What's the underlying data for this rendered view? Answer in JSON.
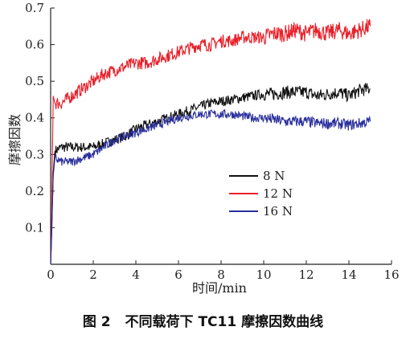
{
  "caption": {
    "label": "图 2",
    "text": "不同载荷下 TC11 摩擦因数曲线"
  },
  "chart_data": {
    "type": "line",
    "xlabel": "时间/min",
    "ylabel": "摩擦因数",
    "xlim": [
      0,
      16
    ],
    "ylim": [
      0,
      0.7
    ],
    "xticks": [
      0,
      2,
      4,
      6,
      8,
      10,
      12,
      14,
      16
    ],
    "xtick_labels": [
      "0",
      "2",
      "4",
      "6",
      "8",
      "10",
      "12",
      "14",
      "16"
    ],
    "yticks": [
      0.1,
      0.2,
      0.3,
      0.4,
      0.5,
      0.6,
      0.7
    ],
    "ytick_labels": [
      "0.1",
      "0.2",
      "0.3",
      "0.4",
      "0.5",
      "0.6",
      "0.7"
    ],
    "grid": false,
    "legend_position": "center-right",
    "series": [
      {
        "name": "8 N",
        "color": "#111111",
        "x": [
          0,
          0.05,
          0.12,
          0.2,
          0.5,
          1,
          1.5,
          2,
          2.5,
          3,
          3.5,
          4,
          4.5,
          5,
          5.5,
          6,
          6.5,
          7,
          7.5,
          8,
          8.5,
          9,
          9.5,
          10,
          10.5,
          11,
          11.5,
          12,
          12.5,
          13,
          13.5,
          14,
          14.5,
          15
        ],
        "y": [
          0,
          0.08,
          0.25,
          0.31,
          0.32,
          0.32,
          0.32,
          0.32,
          0.33,
          0.34,
          0.35,
          0.37,
          0.38,
          0.39,
          0.4,
          0.41,
          0.42,
          0.43,
          0.44,
          0.445,
          0.45,
          0.455,
          0.46,
          0.465,
          0.465,
          0.47,
          0.47,
          0.47,
          0.46,
          0.465,
          0.47,
          0.46,
          0.475,
          0.48
        ]
      },
      {
        "name": "12 N",
        "color": "#e8202a",
        "x": [
          0,
          0.05,
          0.12,
          0.2,
          0.5,
          1,
          1.5,
          2,
          2.5,
          3,
          3.5,
          4,
          4.5,
          5,
          5.5,
          6,
          6.5,
          7,
          7.5,
          8,
          8.5,
          9,
          9.5,
          10,
          10.5,
          11,
          11.5,
          12,
          12.5,
          13,
          13.5,
          14,
          14.5,
          15
        ],
        "y": [
          0,
          0.15,
          0.46,
          0.44,
          0.44,
          0.46,
          0.48,
          0.5,
          0.52,
          0.53,
          0.54,
          0.55,
          0.55,
          0.56,
          0.57,
          0.58,
          0.59,
          0.6,
          0.6,
          0.61,
          0.61,
          0.62,
          0.62,
          0.62,
          0.63,
          0.63,
          0.64,
          0.63,
          0.64,
          0.63,
          0.64,
          0.63,
          0.64,
          0.65
        ]
      },
      {
        "name": "16 N",
        "color": "#2a2f9c",
        "x": [
          0,
          0.05,
          0.12,
          0.2,
          0.5,
          1,
          1.5,
          2,
          2.5,
          3,
          3.5,
          4,
          4.5,
          5,
          5.5,
          6,
          6.5,
          7,
          7.5,
          8,
          8.5,
          9,
          9.5,
          10,
          10.5,
          11,
          11.5,
          12,
          12.5,
          13,
          13.5,
          14,
          14.5,
          15
        ],
        "y": [
          0,
          0.1,
          0.24,
          0.29,
          0.28,
          0.28,
          0.29,
          0.3,
          0.32,
          0.34,
          0.35,
          0.36,
          0.37,
          0.38,
          0.39,
          0.4,
          0.405,
          0.41,
          0.41,
          0.41,
          0.41,
          0.405,
          0.4,
          0.4,
          0.395,
          0.39,
          0.39,
          0.39,
          0.385,
          0.385,
          0.385,
          0.38,
          0.385,
          0.39
        ]
      }
    ]
  }
}
